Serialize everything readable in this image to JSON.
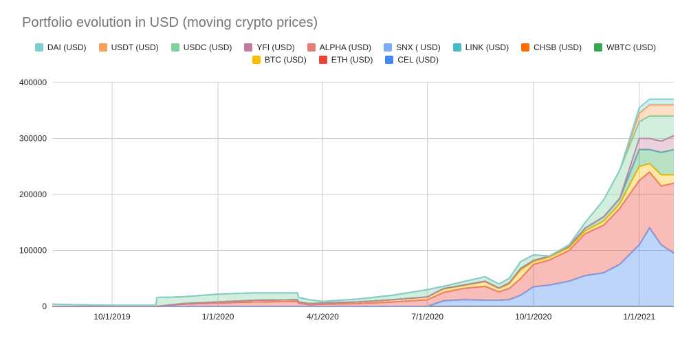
{
  "chart_data": {
    "type": "area",
    "stacked": true,
    "title": "Portfolio evolution in USD (moving crypto prices)",
    "xlabel": "",
    "ylabel": "",
    "ylim": [
      0,
      400000
    ],
    "yticks": [
      "0",
      "100000",
      "200000",
      "300000",
      "400000"
    ],
    "xlim": [
      "2019-08-10",
      "2021-01-31"
    ],
    "xticks": [
      {
        "date": "2019-10-01",
        "label": "10/1/2019"
      },
      {
        "date": "2020-01-01",
        "label": "1/1/2020"
      },
      {
        "date": "2020-04-01",
        "label": "4/1/2020"
      },
      {
        "date": "2020-07-01",
        "label": "7/1/2020"
      },
      {
        "date": "2020-10-01",
        "label": "10/1/2020"
      },
      {
        "date": "2021-01-01",
        "label": "1/1/2021"
      }
    ],
    "grid": true,
    "legend_position": "top",
    "x": [
      "2019-08-10",
      "2019-09-01",
      "2019-10-01",
      "2019-11-08",
      "2019-11-09",
      "2019-12-01",
      "2020-01-01",
      "2020-02-01",
      "2020-03-10",
      "2020-03-11",
      "2020-03-20",
      "2020-04-01",
      "2020-05-01",
      "2020-06-01",
      "2020-07-01",
      "2020-07-15",
      "2020-08-01",
      "2020-08-20",
      "2020-09-01",
      "2020-09-10",
      "2020-09-20",
      "2020-10-01",
      "2020-10-15",
      "2020-11-01",
      "2020-11-15",
      "2020-12-01",
      "2020-12-15",
      "2021-01-01",
      "2021-01-10",
      "2021-01-20",
      "2021-01-31"
    ],
    "series": [
      {
        "name": "CEL (USD)",
        "color": "#4285f4",
        "values": [
          0,
          0,
          0,
          0,
          0,
          0,
          0,
          0,
          0,
          0,
          0,
          0,
          0,
          0,
          0,
          10000,
          12000,
          11000,
          11000,
          12000,
          20000,
          35000,
          38000,
          45000,
          55000,
          60000,
          75000,
          110000,
          140000,
          110000,
          95000
        ]
      },
      {
        "name": "SNX ( USD)",
        "color": "#7baaf7",
        "values": [
          0,
          0,
          0,
          0,
          0,
          0,
          0,
          0,
          0,
          0,
          0,
          0,
          0,
          0,
          0,
          0,
          0,
          0,
          0,
          0,
          0,
          0,
          0,
          0,
          0,
          0,
          0,
          0,
          0,
          0,
          0
        ]
      },
      {
        "name": "ETH (USD)",
        "color": "#ea4335",
        "values": [
          0,
          0,
          0,
          0,
          0,
          4000,
          6000,
          8000,
          9000,
          6000,
          3000,
          4000,
          5000,
          8000,
          12000,
          15000,
          20000,
          25000,
          15000,
          20000,
          30000,
          40000,
          45000,
          55000,
          75000,
          85000,
          100000,
          115000,
          100000,
          105000,
          125000
        ]
      },
      {
        "name": "ALPHA (USD)",
        "color": "#e67c73",
        "values": [
          0,
          0,
          0,
          0,
          0,
          0,
          0,
          0,
          0,
          0,
          0,
          0,
          0,
          0,
          0,
          0,
          0,
          0,
          0,
          0,
          0,
          0,
          0,
          0,
          0,
          0,
          0,
          0,
          0,
          0,
          0
        ]
      },
      {
        "name": "BTC (USD)",
        "color": "#fbbc04",
        "values": [
          0,
          0,
          0,
          0,
          0,
          1000,
          2000,
          3000,
          3000,
          2000,
          2000,
          2000,
          3000,
          4000,
          5000,
          6000,
          5000,
          8000,
          6000,
          8000,
          15000,
          5000,
          5000,
          5000,
          5000,
          7000,
          8000,
          25000,
          15000,
          20000,
          15000
        ]
      },
      {
        "name": "WBTC (USD)",
        "color": "#34a853",
        "values": [
          0,
          0,
          0,
          0,
          0,
          0,
          0,
          0,
          0,
          0,
          0,
          0,
          0,
          0,
          0,
          1000,
          1000,
          1000,
          1000,
          2000,
          3000,
          2000,
          2000,
          3000,
          5000,
          8000,
          10000,
          30000,
          25000,
          40000,
          45000
        ]
      },
      {
        "name": "CHSB (USD)",
        "color": "#ff6d01",
        "values": [
          0,
          0,
          0,
          0,
          0,
          0,
          0,
          0,
          0,
          0,
          0,
          0,
          0,
          0,
          0,
          0,
          0,
          0,
          0,
          0,
          0,
          0,
          0,
          0,
          0,
          0,
          0,
          0,
          0,
          0,
          0
        ]
      },
      {
        "name": "LINK (USD)",
        "color": "#46bdc6",
        "values": [
          0,
          0,
          0,
          0,
          0,
          0,
          0,
          0,
          0,
          0,
          0,
          0,
          0,
          0,
          0,
          0,
          0,
          0,
          0,
          0,
          0,
          0,
          0,
          0,
          0,
          0,
          0,
          0,
          0,
          0,
          0
        ]
      },
      {
        "name": "YFI (USD)",
        "color": "#c27ba0",
        "values": [
          0,
          0,
          0,
          0,
          0,
          0,
          0,
          0,
          0,
          0,
          0,
          0,
          0,
          0,
          0,
          0,
          0,
          0,
          0,
          0,
          0,
          0,
          0,
          0,
          0,
          0,
          0,
          20000,
          20000,
          20000,
          25000
        ]
      },
      {
        "name": "USDC (USD)",
        "color": "#7ed09f",
        "values": [
          4000,
          3000,
          2000,
          2000,
          16000,
          12000,
          14000,
          13000,
          12000,
          8000,
          7000,
          3000,
          5000,
          8000,
          13000,
          4000,
          6000,
          8000,
          7000,
          8000,
          12000,
          10000,
          0,
          2000,
          10000,
          30000,
          50000,
          30000,
          40000,
          45000,
          35000
        ]
      },
      {
        "name": "USDT (USD)",
        "color": "#f6a05a",
        "values": [
          0,
          0,
          0,
          0,
          0,
          0,
          0,
          0,
          0,
          0,
          0,
          0,
          0,
          0,
          0,
          0,
          0,
          0,
          0,
          0,
          0,
          0,
          0,
          0,
          0,
          0,
          0,
          15000,
          20000,
          20000,
          20000
        ]
      },
      {
        "name": "DAI (USD)",
        "color": "#7fd1d0",
        "values": [
          0,
          0,
          0,
          0,
          0,
          0,
          0,
          0,
          0,
          0,
          0,
          0,
          0,
          0,
          0,
          0,
          0,
          0,
          0,
          0,
          0,
          0,
          0,
          0,
          0,
          0,
          0,
          10000,
          10000,
          10000,
          10000
        ]
      }
    ],
    "legend_order": [
      "DAI (USD)",
      "USDT (USD)",
      "USDC (USD)",
      "YFI (USD)",
      "ALPHA (USD)",
      "SNX ( USD)",
      "LINK (USD)",
      "CHSB (USD)",
      "WBTC (USD)",
      "BTC (USD)",
      "ETH (USD)",
      "CEL (USD)"
    ]
  }
}
